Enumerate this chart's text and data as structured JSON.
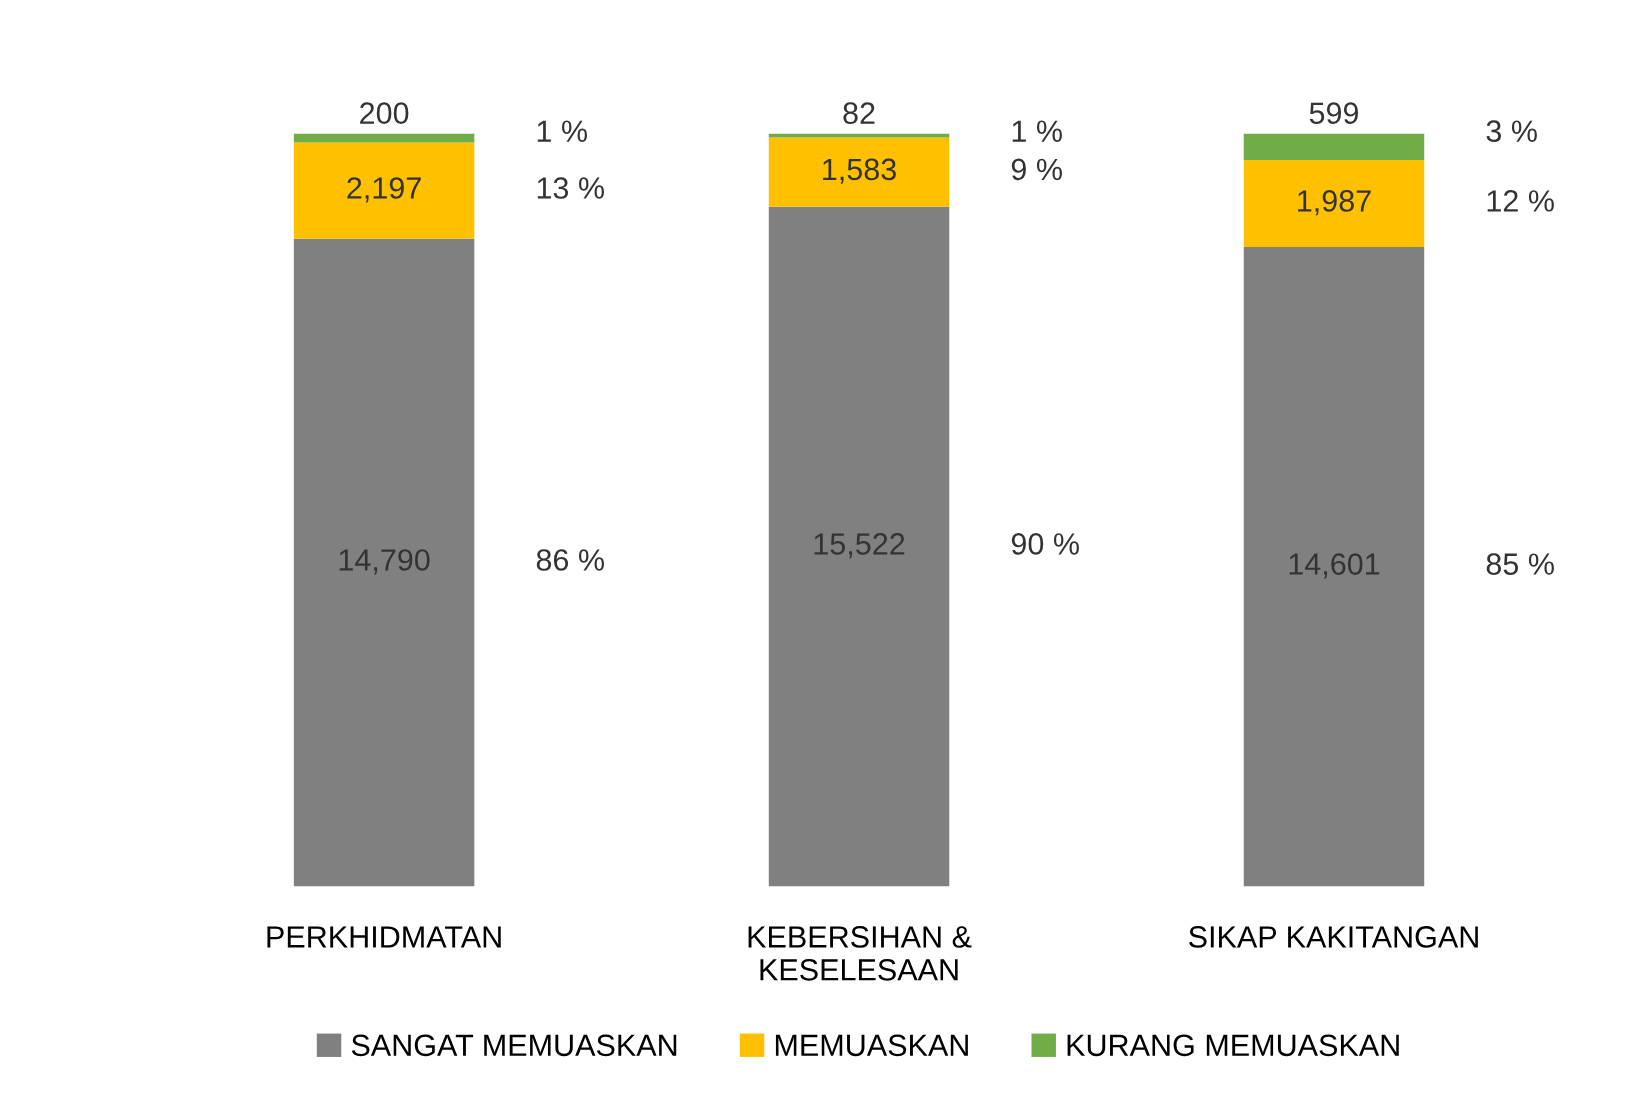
{
  "chart_data": {
    "type": "bar",
    "stacked": true,
    "legend": "bottom",
    "categories": [
      "PERKHIDMATAN",
      "KEBERSIHAN &\nKESELESAAN",
      "SIKAP KAKITANGAN"
    ],
    "series": [
      {
        "name": "SANGAT MEMUASKAN",
        "color": "#808080",
        "values": [
          14790,
          15522,
          14601
        ],
        "value_labels": [
          "14,790",
          "15,522",
          "14,601"
        ]
      },
      {
        "name": "MEMUASKAN",
        "color": "#ffc000",
        "values": [
          2197,
          1583,
          1987
        ],
        "value_labels": [
          "2,197",
          "1,583",
          "1,987"
        ]
      },
      {
        "name": "KURANG MEMUASKAN",
        "color": "#70ad47",
        "values": [
          200,
          82,
          599
        ],
        "value_labels": [
          "200",
          "82",
          "599"
        ]
      }
    ],
    "annotations": [
      "86 %",
      "13 %",
      "1 %",
      "90 %",
      "9 %",
      "1 %",
      "85 %",
      "12 %",
      "3 %"
    ]
  }
}
